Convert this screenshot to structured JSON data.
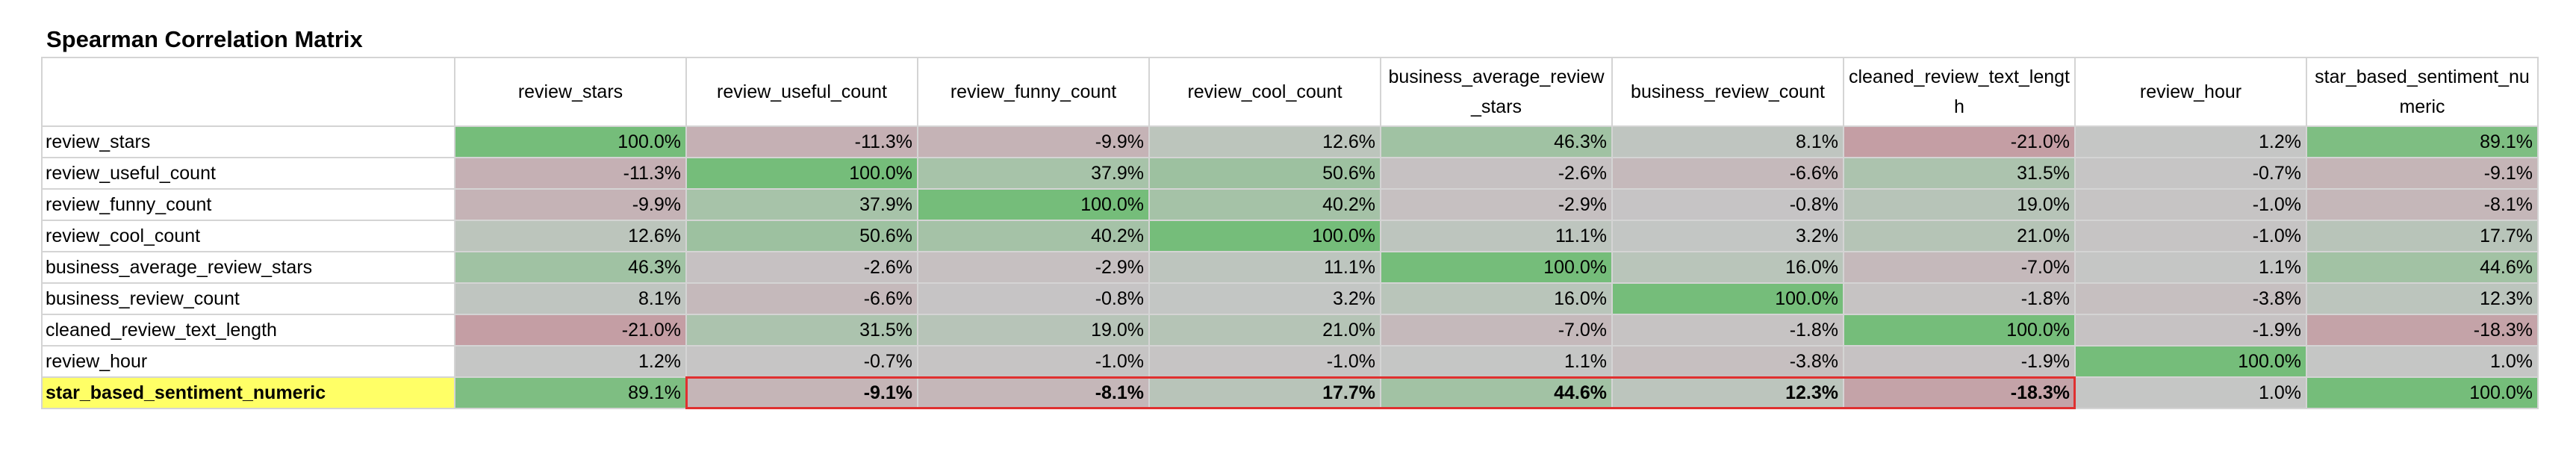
{
  "title": "Spearman Correlation Matrix",
  "columns": [
    "review_stars",
    "review_useful_count",
    "review_funny_count",
    "review_cool_count",
    "business_average_review_stars",
    "business_review_count",
    "cleaned_review_text_length",
    "review_hour",
    "star_based_sentiment_numeric"
  ],
  "rows": [
    {
      "label": "review_stars",
      "values": [
        "100.0%",
        "-11.3%",
        "-9.9%",
        "12.6%",
        "46.3%",
        "8.1%",
        "-21.0%",
        "1.2%",
        "89.1%"
      ],
      "num": [
        1.0,
        -0.113,
        -0.099,
        0.126,
        0.463,
        0.081,
        -0.21,
        0.012,
        0.891
      ]
    },
    {
      "label": "review_useful_count",
      "values": [
        "-11.3%",
        "100.0%",
        "37.9%",
        "50.6%",
        "-2.6%",
        "-6.6%",
        "31.5%",
        "-0.7%",
        "-9.1%"
      ],
      "num": [
        -0.113,
        1.0,
        0.379,
        0.506,
        -0.026,
        -0.066,
        0.315,
        -0.007,
        -0.091
      ]
    },
    {
      "label": "review_funny_count",
      "values": [
        "-9.9%",
        "37.9%",
        "100.0%",
        "40.2%",
        "-2.9%",
        "-0.8%",
        "19.0%",
        "-1.0%",
        "-8.1%"
      ],
      "num": [
        -0.099,
        0.379,
        1.0,
        0.402,
        -0.029,
        -0.008,
        0.19,
        -0.01,
        -0.081
      ]
    },
    {
      "label": "review_cool_count",
      "values": [
        "12.6%",
        "50.6%",
        "40.2%",
        "100.0%",
        "11.1%",
        "3.2%",
        "21.0%",
        "-1.0%",
        "17.7%"
      ],
      "num": [
        0.126,
        0.506,
        0.402,
        1.0,
        0.111,
        0.032,
        0.21,
        -0.01,
        0.177
      ]
    },
    {
      "label": "business_average_review_stars",
      "values": [
        "46.3%",
        "-2.6%",
        "-2.9%",
        "11.1%",
        "100.0%",
        "16.0%",
        "-7.0%",
        "1.1%",
        "44.6%"
      ],
      "num": [
        0.463,
        -0.026,
        -0.029,
        0.111,
        1.0,
        0.16,
        -0.07,
        0.011,
        0.446
      ]
    },
    {
      "label": "business_review_count",
      "values": [
        "8.1%",
        "-6.6%",
        "-0.8%",
        "3.2%",
        "16.0%",
        "100.0%",
        "-1.8%",
        "-3.8%",
        "12.3%"
      ],
      "num": [
        0.081,
        -0.066,
        -0.008,
        0.032,
        0.16,
        1.0,
        -0.018,
        -0.038,
        0.123
      ]
    },
    {
      "label": "cleaned_review_text_length",
      "values": [
        "-21.0%",
        "31.5%",
        "19.0%",
        "21.0%",
        "-7.0%",
        "-1.8%",
        "100.0%",
        "-1.9%",
        "-18.3%"
      ],
      "num": [
        -0.21,
        0.315,
        0.19,
        0.21,
        -0.07,
        -0.018,
        1.0,
        -0.019,
        -0.183
      ]
    },
    {
      "label": "review_hour",
      "values": [
        "1.2%",
        "-0.7%",
        "-1.0%",
        "-1.0%",
        "1.1%",
        "-3.8%",
        "-1.9%",
        "100.0%",
        "1.0%"
      ],
      "num": [
        0.012,
        -0.007,
        -0.01,
        -0.01,
        0.011,
        -0.038,
        -0.019,
        1.0,
        0.01
      ]
    },
    {
      "label": "star_based_sentiment_numeric",
      "values": [
        "89.1%",
        "-9.1%",
        "-8.1%",
        "17.7%",
        "44.6%",
        "12.3%",
        "-18.3%",
        "1.0%",
        "100.0%"
      ],
      "num": [
        0.891,
        -0.091,
        -0.081,
        0.177,
        0.446,
        0.123,
        -0.183,
        0.01,
        1.0
      ],
      "highlight": true
    }
  ],
  "colors": {
    "positive_max": "#75bd7a",
    "neutral": "#c6c6c6",
    "negative_max": "#c49ea4",
    "highlight_label": "#ffff66",
    "red_border": "#e03030",
    "gridline": "#d4d4d4"
  }
}
